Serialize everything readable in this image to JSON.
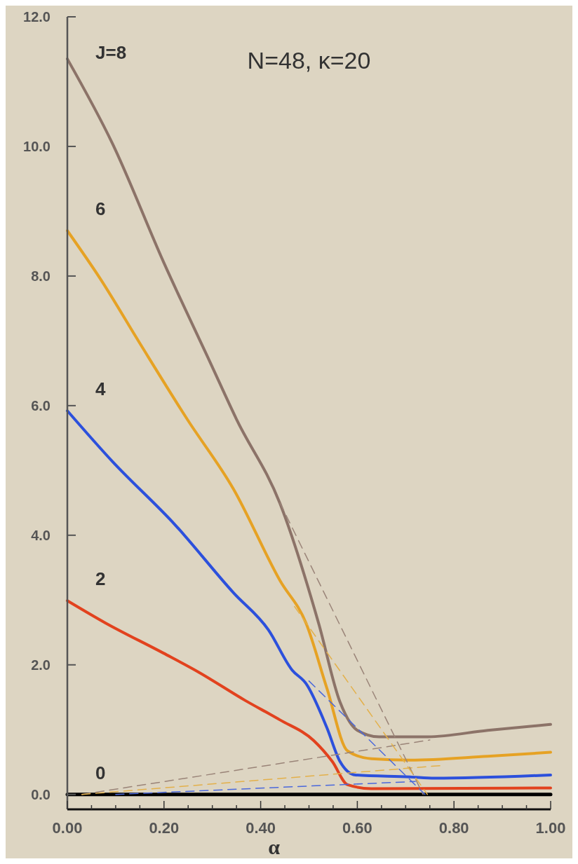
{
  "chart_data": {
    "type": "line",
    "xlabel": "α",
    "annotations": [
      "N=48, κ=20"
    ],
    "xlim": [
      0,
      1.0
    ],
    "ylim": [
      -0.23,
      12.0
    ],
    "xticks": [
      {
        "value": 0,
        "label": "0.00"
      },
      {
        "value": 0.05,
        "label": null
      },
      {
        "value": 0.1,
        "label": null
      },
      {
        "value": 0.15,
        "label": null
      },
      {
        "value": 0.2,
        "label": "0.20"
      },
      {
        "value": 0.25,
        "label": null
      },
      {
        "value": 0.3,
        "label": null
      },
      {
        "value": 0.35,
        "label": null
      },
      {
        "value": 0.4,
        "label": "0.40"
      },
      {
        "value": 0.45,
        "label": null
      },
      {
        "value": 0.5,
        "label": null
      },
      {
        "value": 0.55,
        "label": null
      },
      {
        "value": 0.6,
        "label": "0.60"
      },
      {
        "value": 0.65,
        "label": null
      },
      {
        "value": 0.7,
        "label": null
      },
      {
        "value": 0.75,
        "label": null
      },
      {
        "value": 0.8,
        "label": "0.80"
      },
      {
        "value": 0.85,
        "label": null
      },
      {
        "value": 0.9,
        "label": null
      },
      {
        "value": 0.95,
        "label": null
      },
      {
        "value": 1.0,
        "label": "1.00"
      }
    ],
    "yticks": [
      {
        "value": 0,
        "label": "0.0"
      },
      {
        "value": 2,
        "label": "2.0"
      },
      {
        "value": 4,
        "label": "4.0"
      },
      {
        "value": 6,
        "label": "6.0"
      },
      {
        "value": 8,
        "label": "8.0"
      },
      {
        "value": 10,
        "label": "10.0"
      },
      {
        "value": 12,
        "label": "12.0"
      }
    ],
    "grid": false,
    "marker": "none",
    "line_style": "solid",
    "series": [
      {
        "name": "J=8",
        "color": "#8c7368",
        "x": [
          0,
          0.093,
          0.2,
          0.296,
          0.35,
          0.44,
          0.52,
          0.564,
          0.6,
          0.645,
          0.746,
          0.87,
          1.0
        ],
        "values": [
          11.35,
          10.05,
          8.2,
          6.66,
          5.79,
          4.49,
          2.64,
          1.43,
          0.99,
          0.89,
          0.89,
          0.99,
          1.08
        ]
      },
      {
        "name": "6",
        "color": "#e6a224",
        "x": [
          0,
          0.068,
          0.151,
          0.248,
          0.344,
          0.44,
          0.494,
          0.537,
          0.58,
          0.629,
          0.709,
          0.87,
          1.0
        ],
        "values": [
          8.7,
          7.96,
          6.95,
          5.79,
          4.71,
          3.3,
          2.64,
          1.64,
          0.67,
          0.55,
          0.53,
          0.59,
          0.65
        ]
      },
      {
        "name": "4",
        "color": "#2c50dc",
        "x": [
          0,
          0.093,
          0.223,
          0.344,
          0.416,
          0.465,
          0.494,
          0.537,
          0.564,
          0.596,
          0.709,
          0.76,
          1.0
        ],
        "values": [
          5.92,
          5.14,
          4.16,
          3.11,
          2.54,
          1.92,
          1.71,
          1.03,
          0.51,
          0.3,
          0.27,
          0.25,
          0.3
        ]
      },
      {
        "name": "2",
        "color": "#e2421e",
        "x": [
          0,
          0.078,
          0.199,
          0.271,
          0.368,
          0.44,
          0.51,
          0.548,
          0.58,
          0.629,
          1.0
        ],
        "values": [
          2.99,
          2.65,
          2.18,
          1.89,
          1.45,
          1.15,
          0.83,
          0.51,
          0.15,
          0.09,
          0.1
        ]
      },
      {
        "name": "0",
        "color": "#000000",
        "x": [
          0,
          1.0
        ],
        "values": [
          0,
          0
        ]
      },
      {
        "color": "#9a8478",
        "line_style": "dashed",
        "x": [
          0.03,
          0.75
        ],
        "values": [
          0,
          0.84
        ]
      },
      {
        "color": "#e3b04a",
        "line_style": "dashed",
        "x": [
          0.03,
          0.78
        ],
        "values": [
          0,
          0.45
        ]
      },
      {
        "color": "#4a68dc",
        "line_style": "dashed",
        "x": [
          0.1,
          0.72
        ],
        "values": [
          0,
          0.2
        ]
      },
      {
        "color": "#9a8478",
        "line_style": "dashed",
        "x": [
          0.44,
          0.736
        ],
        "values": [
          4.5,
          0
        ]
      },
      {
        "color": "#e3b04a",
        "line_style": "dashed",
        "x": [
          0.47,
          0.745
        ],
        "values": [
          2.9,
          0
        ]
      },
      {
        "color": "#4a68dc",
        "line_style": "dashed",
        "x": [
          0.5,
          0.74
        ],
        "values": [
          1.75,
          0
        ]
      }
    ]
  }
}
